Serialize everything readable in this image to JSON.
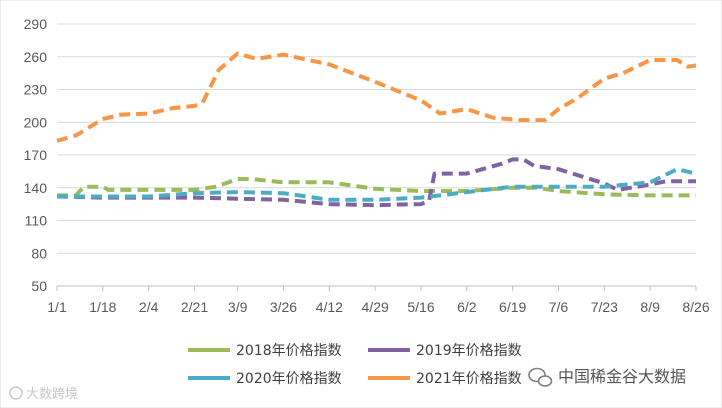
{
  "chart_data": {
    "type": "line",
    "title": "",
    "xlabel": "",
    "ylabel": "",
    "ylim": [
      50,
      290
    ],
    "yticks": [
      50,
      80,
      110,
      140,
      170,
      200,
      230,
      260,
      290
    ],
    "xticks": [
      "1/1",
      "1/18",
      "2/4",
      "2/21",
      "3/9",
      "3/26",
      "4/12",
      "4/29",
      "5/16",
      "6/2",
      "6/19",
      "7/6",
      "7/23",
      "8/9",
      "8/26"
    ],
    "grid": "horizontal",
    "line_style": "dashed",
    "legend_placement": "bottom",
    "series": [
      {
        "name": "2018年价格指数",
        "color": "#9BBB59",
        "points": [
          [
            "1/1",
            133
          ],
          [
            "1/8",
            133
          ],
          [
            "1/11",
            141
          ],
          [
            "1/18",
            141
          ],
          [
            "1/20",
            138
          ],
          [
            "2/4",
            138
          ],
          [
            "2/21",
            138
          ],
          [
            "3/1",
            141
          ],
          [
            "3/9",
            148
          ],
          [
            "3/14",
            148
          ],
          [
            "3/26",
            145
          ],
          [
            "4/12",
            145
          ],
          [
            "4/29",
            139
          ],
          [
            "5/16",
            137
          ],
          [
            "6/2",
            137
          ],
          [
            "6/19",
            140
          ],
          [
            "6/28",
            140
          ],
          [
            "7/6",
            137
          ],
          [
            "7/23",
            134
          ],
          [
            "8/9",
            133
          ],
          [
            "8/26",
            133
          ]
        ]
      },
      {
        "name": "2019年价格指数",
        "color": "#8064A2",
        "points": [
          [
            "1/1",
            132
          ],
          [
            "1/18",
            131
          ],
          [
            "2/4",
            131
          ],
          [
            "2/21",
            131
          ],
          [
            "3/9",
            130
          ],
          [
            "3/26",
            129
          ],
          [
            "4/12",
            125
          ],
          [
            "4/29",
            124
          ],
          [
            "5/16",
            125
          ],
          [
            "5/19",
            128
          ],
          [
            "5/21",
            153
          ],
          [
            "6/2",
            153
          ],
          [
            "6/15",
            162
          ],
          [
            "6/19",
            166
          ],
          [
            "6/23",
            166
          ],
          [
            "6/27",
            160
          ],
          [
            "7/6",
            157
          ],
          [
            "7/23",
            144
          ],
          [
            "7/28",
            138
          ],
          [
            "8/9",
            143
          ],
          [
            "8/15",
            146
          ],
          [
            "8/26",
            146
          ]
        ]
      },
      {
        "name": "2020年价格指数",
        "color": "#4BACC6",
        "points": [
          [
            "1/1",
            132
          ],
          [
            "1/18",
            132
          ],
          [
            "2/4",
            132
          ],
          [
            "2/21",
            135
          ],
          [
            "3/9",
            136
          ],
          [
            "3/26",
            135
          ],
          [
            "4/12",
            129
          ],
          [
            "4/29",
            129
          ],
          [
            "5/16",
            131
          ],
          [
            "6/2",
            136
          ],
          [
            "6/19",
            141
          ],
          [
            "7/6",
            141
          ],
          [
            "7/23",
            141
          ],
          [
            "8/9",
            145
          ],
          [
            "8/19",
            157
          ],
          [
            "8/26",
            153
          ]
        ]
      },
      {
        "name": "2021年价格指数",
        "color": "#F79646",
        "points": [
          [
            "1/1",
            183
          ],
          [
            "1/8",
            188
          ],
          [
            "1/18",
            203
          ],
          [
            "1/25",
            207
          ],
          [
            "2/4",
            208
          ],
          [
            "2/13",
            213
          ],
          [
            "2/21",
            215
          ],
          [
            "2/24",
            218
          ],
          [
            "3/2",
            248
          ],
          [
            "3/9",
            263
          ],
          [
            "3/16",
            258
          ],
          [
            "3/26",
            262
          ],
          [
            "4/12",
            253
          ],
          [
            "4/29",
            237
          ],
          [
            "5/16",
            220
          ],
          [
            "5/23",
            208
          ],
          [
            "6/2",
            212
          ],
          [
            "6/12",
            204
          ],
          [
            "6/22",
            202
          ],
          [
            "7/1",
            202
          ],
          [
            "7/6",
            212
          ],
          [
            "7/13",
            222
          ],
          [
            "7/23",
            240
          ],
          [
            "7/30",
            245
          ],
          [
            "8/9",
            257
          ],
          [
            "8/19",
            257
          ],
          [
            "8/23",
            251
          ],
          [
            "8/26",
            252
          ]
        ]
      }
    ]
  },
  "legend": {
    "items": [
      {
        "label": "2018年价格指数",
        "color": "#9BBB59"
      },
      {
        "label": "2019年价格指数",
        "color": "#8064A2"
      },
      {
        "label": "2020年价格指数",
        "color": "#4BACC6"
      },
      {
        "label": "2021年价格指数",
        "color": "#F79646"
      }
    ]
  },
  "watermarks": {
    "left": "大数跨境",
    "right": "中国稀金谷大数据"
  }
}
